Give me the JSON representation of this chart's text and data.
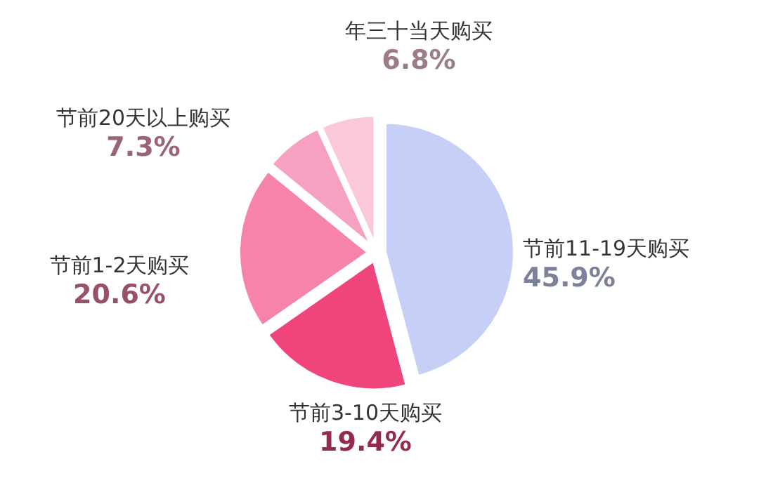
{
  "chart_data": {
    "type": "pie",
    "categories": [
      "节前11-19天购买",
      "节前3-10天购买",
      "节前1-2天购买",
      "节前20天以上购买",
      "年三十当天购买"
    ],
    "values": [
      45.9,
      19.4,
      20.6,
      7.3,
      6.8
    ],
    "colors": [
      "#c6d0f6",
      "#f0457b",
      "#f583aa",
      "#f7a1c2",
      "#fac8da"
    ],
    "value_labels": [
      "45.9%",
      "19.4%",
      "20.6%",
      "7.3%",
      "6.8%"
    ]
  }
}
